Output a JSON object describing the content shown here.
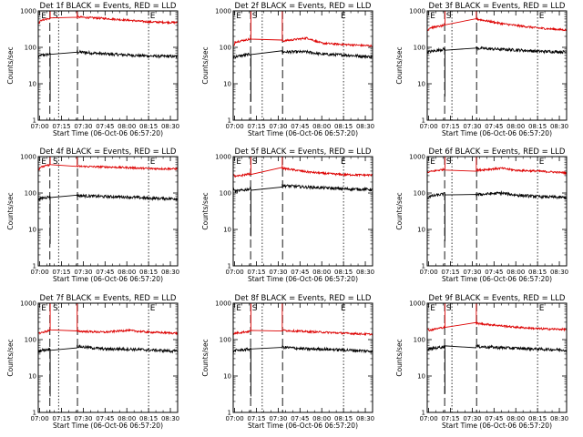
{
  "colors": {
    "events": "#000000",
    "lld": "#dd0000",
    "axes": "#000000",
    "background": "#ffffff"
  },
  "chart_data": [
    {
      "type": "line",
      "title": "Det 1f BLACK = Events, RED = LLD",
      "xlabel": "Start Time (06-Oct-06 06:57:20)",
      "ylabel": "Counts/sec",
      "yscale": "log",
      "ylim": [
        1,
        1000
      ],
      "xticks": [
        "07:00",
        "07:15",
        "07:30",
        "07:45",
        "08:00",
        "08:15",
        "08:30"
      ],
      "yticks": [
        "1",
        "10",
        "100",
        "1000"
      ],
      "markers": [
        "E",
        "S",
        "E"
      ],
      "series": [
        {
          "name": "BLACK = Events",
          "color": "#000000",
          "values": [
            {
              "t": "07:00",
              "y": 60
            },
            {
              "t": "07:07",
              "y": 65
            },
            {
              "t": "07:26",
              "y": 75
            },
            {
              "t": "07:45",
              "y": 66
            },
            {
              "t": "08:00",
              "y": 62
            },
            {
              "t": "08:15",
              "y": 58
            },
            {
              "t": "08:34",
              "y": 56
            }
          ]
        },
        {
          "name": "RED = LLD",
          "color": "#dd0000",
          "values": [
            {
              "t": "07:00",
              "y": 550
            },
            {
              "t": "07:07",
              "y": 620
            },
            {
              "t": "07:26",
              "y": 680
            },
            {
              "t": "07:45",
              "y": 620
            },
            {
              "t": "08:00",
              "y": 560
            },
            {
              "t": "08:15",
              "y": 500
            },
            {
              "t": "08:34",
              "y": 480
            }
          ]
        }
      ]
    },
    {
      "type": "line",
      "title": "Det 2f BLACK = Events, RED = LLD",
      "xlabel": "Start Time (06-Oct-06 06:57:20)",
      "ylabel": "Counts/sec",
      "yscale": "log",
      "ylim": [
        1,
        1000
      ],
      "xticks": [
        "07:00",
        "07:15",
        "07:30",
        "07:45",
        "08:00",
        "08:15",
        "08:30"
      ],
      "yticks": [
        "1",
        "10",
        "100",
        "1000"
      ],
      "markers": [
        "E",
        "S",
        "E"
      ],
      "series": [
        {
          "name": "BLACK = Events",
          "color": "#000000",
          "values": [
            {
              "t": "07:00",
              "y": 55
            },
            {
              "t": "07:11",
              "y": 65
            },
            {
              "t": "07:33",
              "y": 75
            },
            {
              "t": "07:50",
              "y": 75
            },
            {
              "t": "08:00",
              "y": 65
            },
            {
              "t": "08:15",
              "y": 62
            },
            {
              "t": "08:34",
              "y": 55
            }
          ]
        },
        {
          "name": "RED = LLD",
          "color": "#dd0000",
          "values": [
            {
              "t": "07:00",
              "y": 140
            },
            {
              "t": "07:11",
              "y": 170
            },
            {
              "t": "07:33",
              "y": 150
            },
            {
              "t": "07:50",
              "y": 180
            },
            {
              "t": "08:00",
              "y": 130
            },
            {
              "t": "08:15",
              "y": 120
            },
            {
              "t": "08:34",
              "y": 110
            }
          ]
        }
      ]
    },
    {
      "type": "line",
      "title": "Det 3f BLACK = Events, RED = LLD",
      "xlabel": "Start Time (06-Oct-06 06:57:20)",
      "ylabel": "Counts/sec",
      "yscale": "log",
      "ylim": [
        1,
        1000
      ],
      "xticks": [
        "07:00",
        "07:15",
        "07:30",
        "07:45",
        "08:00",
        "08:15",
        "08:30"
      ],
      "yticks": [
        "1",
        "10",
        "100",
        "1000"
      ],
      "markers": [
        "E",
        "S",
        "E"
      ],
      "series": [
        {
          "name": "BLACK = Events",
          "color": "#000000",
          "values": [
            {
              "t": "07:00",
              "y": 75
            },
            {
              "t": "07:11",
              "y": 90
            },
            {
              "t": "07:33",
              "y": 95
            },
            {
              "t": "07:50",
              "y": 88
            },
            {
              "t": "08:00",
              "y": 85
            },
            {
              "t": "08:15",
              "y": 78
            },
            {
              "t": "08:34",
              "y": 75
            }
          ]
        },
        {
          "name": "RED = LLD",
          "color": "#dd0000",
          "values": [
            {
              "t": "07:00",
              "y": 340
            },
            {
              "t": "07:11",
              "y": 400
            },
            {
              "t": "07:33",
              "y": 600
            },
            {
              "t": "07:50",
              "y": 450
            },
            {
              "t": "08:00",
              "y": 400
            },
            {
              "t": "08:15",
              "y": 340
            },
            {
              "t": "08:34",
              "y": 300
            }
          ]
        }
      ]
    },
    {
      "type": "line",
      "title": "Det 4f BLACK = Events, RED = LLD",
      "xlabel": "Start Time (06-Oct-06 06:57:20)",
      "ylabel": "Counts/sec",
      "yscale": "log",
      "ylim": [
        1,
        1000
      ],
      "xticks": [
        "07:00",
        "07:15",
        "07:30",
        "07:45",
        "08:00",
        "08:15",
        "08:30"
      ],
      "yticks": [
        "1",
        "10",
        "100",
        "1000"
      ],
      "markers": [
        "E",
        "S",
        "E"
      ],
      "series": [
        {
          "name": "BLACK = Events",
          "color": "#000000",
          "values": [
            {
              "t": "07:00",
              "y": 70
            },
            {
              "t": "07:07",
              "y": 80
            },
            {
              "t": "07:26",
              "y": 85
            },
            {
              "t": "07:45",
              "y": 80
            },
            {
              "t": "08:00",
              "y": 78
            },
            {
              "t": "08:15",
              "y": 72
            },
            {
              "t": "08:34",
              "y": 70
            }
          ]
        },
        {
          "name": "RED = LLD",
          "color": "#dd0000",
          "values": [
            {
              "t": "07:00",
              "y": 500
            },
            {
              "t": "07:07",
              "y": 600
            },
            {
              "t": "07:26",
              "y": 540
            },
            {
              "t": "07:45",
              "y": 520
            },
            {
              "t": "08:00",
              "y": 500
            },
            {
              "t": "08:15",
              "y": 470
            },
            {
              "t": "08:34",
              "y": 460
            }
          ]
        }
      ]
    },
    {
      "type": "line",
      "title": "Det 5f BLACK = Events, RED = LLD",
      "xlabel": "Start Time (06-Oct-06 06:57:20)",
      "ylabel": "Counts/sec",
      "yscale": "log",
      "ylim": [
        1,
        1000
      ],
      "xticks": [
        "07:00",
        "07:15",
        "07:30",
        "07:45",
        "08:00",
        "08:15",
        "08:30"
      ],
      "yticks": [
        "1",
        "10",
        "100",
        "1000"
      ],
      "markers": [
        "E",
        "S",
        "E"
      ],
      "series": [
        {
          "name": "BLACK = Events",
          "color": "#000000",
          "values": [
            {
              "t": "07:00",
              "y": 110
            },
            {
              "t": "07:11",
              "y": 130
            },
            {
              "t": "07:33",
              "y": 160
            },
            {
              "t": "07:50",
              "y": 145
            },
            {
              "t": "08:00",
              "y": 140
            },
            {
              "t": "08:15",
              "y": 130
            },
            {
              "t": "08:34",
              "y": 125
            }
          ]
        },
        {
          "name": "RED = LLD",
          "color": "#dd0000",
          "values": [
            {
              "t": "07:00",
              "y": 280
            },
            {
              "t": "07:11",
              "y": 340
            },
            {
              "t": "07:33",
              "y": 480
            },
            {
              "t": "07:50",
              "y": 380
            },
            {
              "t": "08:00",
              "y": 350
            },
            {
              "t": "08:15",
              "y": 320
            },
            {
              "t": "08:34",
              "y": 310
            }
          ]
        }
      ]
    },
    {
      "type": "line",
      "title": "Det 6f BLACK = Events, RED = LLD",
      "xlabel": "Start Time (06-Oct-06 06:57:20)",
      "ylabel": "Counts/sec",
      "yscale": "log",
      "ylim": [
        1,
        1000
      ],
      "xticks": [
        "07:00",
        "07:15",
        "07:30",
        "07:45",
        "08:00",
        "08:15",
        "08:30"
      ],
      "yticks": [
        "1",
        "10",
        "100",
        "1000"
      ],
      "markers": [
        "E",
        "S",
        "E"
      ],
      "series": [
        {
          "name": "BLACK = Events",
          "color": "#000000",
          "values": [
            {
              "t": "07:00",
              "y": 80
            },
            {
              "t": "07:11",
              "y": 95
            },
            {
              "t": "07:33",
              "y": 90
            },
            {
              "t": "07:50",
              "y": 100
            },
            {
              "t": "08:00",
              "y": 88
            },
            {
              "t": "08:15",
              "y": 80
            },
            {
              "t": "08:34",
              "y": 75
            }
          ]
        },
        {
          "name": "RED = LLD",
          "color": "#dd0000",
          "values": [
            {
              "t": "07:00",
              "y": 380
            },
            {
              "t": "07:11",
              "y": 450
            },
            {
              "t": "07:33",
              "y": 420
            },
            {
              "t": "07:50",
              "y": 480
            },
            {
              "t": "08:00",
              "y": 420
            },
            {
              "t": "08:15",
              "y": 400
            },
            {
              "t": "08:34",
              "y": 360
            }
          ]
        }
      ]
    },
    {
      "type": "line",
      "title": "Det 7f BLACK = Events, RED = LLD",
      "xlabel": "Start Time (06-Oct-06 06:57:20)",
      "ylabel": "Counts/sec",
      "yscale": "log",
      "ylim": [
        1,
        1000
      ],
      "xticks": [
        "07:00",
        "07:15",
        "07:30",
        "07:45",
        "08:00",
        "08:15",
        "08:30"
      ],
      "yticks": [
        "1",
        "10",
        "100",
        "1000"
      ],
      "markers": [
        "E",
        "S",
        "E"
      ],
      "series": [
        {
          "name": "BLACK = Events",
          "color": "#000000",
          "values": [
            {
              "t": "07:00",
              "y": 50
            },
            {
              "t": "07:07",
              "y": 55
            },
            {
              "t": "07:26",
              "y": 65
            },
            {
              "t": "07:45",
              "y": 55
            },
            {
              "t": "08:00",
              "y": 55
            },
            {
              "t": "08:15",
              "y": 52
            },
            {
              "t": "08:34",
              "y": 48
            }
          ]
        },
        {
          "name": "RED = LLD",
          "color": "#dd0000",
          "values": [
            {
              "t": "07:00",
              "y": 150
            },
            {
              "t": "07:07",
              "y": 180
            },
            {
              "t": "07:26",
              "y": 170
            },
            {
              "t": "07:45",
              "y": 160
            },
            {
              "t": "08:00",
              "y": 180
            },
            {
              "t": "08:15",
              "y": 160
            },
            {
              "t": "08:34",
              "y": 150
            }
          ]
        }
      ]
    },
    {
      "type": "line",
      "title": "Det 8f BLACK = Events, RED = LLD",
      "xlabel": "Start Time (06-Oct-06 06:57:20)",
      "ylabel": "Counts/sec",
      "yscale": "log",
      "ylim": [
        1,
        1000
      ],
      "xticks": [
        "07:00",
        "07:15",
        "07:30",
        "07:45",
        "08:00",
        "08:15",
        "08:30"
      ],
      "yticks": [
        "1",
        "10",
        "100",
        "1000"
      ],
      "markers": [
        "E",
        "S",
        "E"
      ],
      "series": [
        {
          "name": "BLACK = Events",
          "color": "#000000",
          "values": [
            {
              "t": "07:00",
              "y": 50
            },
            {
              "t": "07:11",
              "y": 55
            },
            {
              "t": "07:33",
              "y": 62
            },
            {
              "t": "07:50",
              "y": 55
            },
            {
              "t": "08:00",
              "y": 55
            },
            {
              "t": "08:15",
              "y": 52
            },
            {
              "t": "08:34",
              "y": 48
            }
          ]
        },
        {
          "name": "RED = LLD",
          "color": "#dd0000",
          "values": [
            {
              "t": "07:00",
              "y": 150
            },
            {
              "t": "07:11",
              "y": 170
            },
            {
              "t": "07:33",
              "y": 180
            },
            {
              "t": "07:50",
              "y": 165
            },
            {
              "t": "08:00",
              "y": 160
            },
            {
              "t": "08:15",
              "y": 150
            },
            {
              "t": "08:34",
              "y": 140
            }
          ]
        }
      ]
    },
    {
      "type": "line",
      "title": "Det 9f BLACK = Events, RED = LLD",
      "xlabel": "Start Time (06-Oct-06 06:57:20)",
      "ylabel": "Counts/sec",
      "yscale": "log",
      "ylim": [
        1,
        1000
      ],
      "xticks": [
        "07:00",
        "07:15",
        "07:30",
        "07:45",
        "08:00",
        "08:15",
        "08:30"
      ],
      "yticks": [
        "1",
        "10",
        "100",
        "1000"
      ],
      "markers": [
        "E",
        "S",
        "E"
      ],
      "series": [
        {
          "name": "BLACK = Events",
          "color": "#000000",
          "values": [
            {
              "t": "07:00",
              "y": 55
            },
            {
              "t": "07:11",
              "y": 65
            },
            {
              "t": "07:33",
              "y": 65
            },
            {
              "t": "07:50",
              "y": 60
            },
            {
              "t": "08:00",
              "y": 58
            },
            {
              "t": "08:15",
              "y": 55
            },
            {
              "t": "08:34",
              "y": 52
            }
          ]
        },
        {
          "name": "RED = LLD",
          "color": "#dd0000",
          "values": [
            {
              "t": "07:00",
              "y": 180
            },
            {
              "t": "07:11",
              "y": 220
            },
            {
              "t": "07:33",
              "y": 280
            },
            {
              "t": "07:50",
              "y": 240
            },
            {
              "t": "08:00",
              "y": 220
            },
            {
              "t": "08:15",
              "y": 200
            },
            {
              "t": "08:34",
              "y": 190
            }
          ]
        }
      ]
    }
  ]
}
